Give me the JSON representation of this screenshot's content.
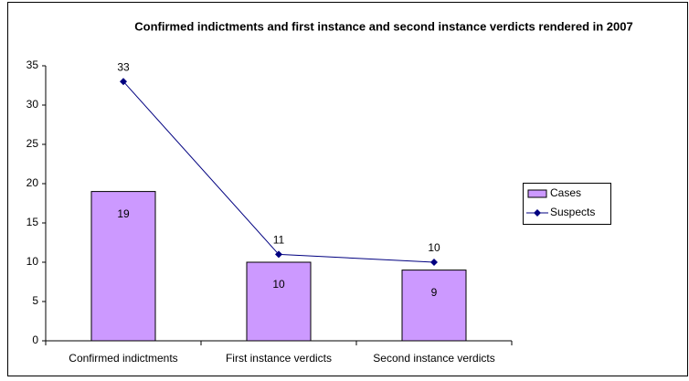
{
  "chart_data": {
    "type": "bar",
    "title": "Confirmed indictments and first instance and second instance verdicts rendered in 2007",
    "categories": [
      "Confirmed indictments",
      "First instance verdicts",
      "Second instance verdicts"
    ],
    "series": [
      {
        "name": "Cases",
        "type": "bar",
        "color": "#cc99ff",
        "values": [
          19,
          10,
          9
        ]
      },
      {
        "name": "Suspects",
        "type": "line",
        "color": "#000080",
        "values": [
          33,
          11,
          10
        ]
      }
    ],
    "ylim": [
      0,
      35
    ],
    "yticks": [
      0,
      5,
      10,
      15,
      20,
      25,
      30,
      35
    ],
    "grid": false,
    "legend": "right"
  }
}
